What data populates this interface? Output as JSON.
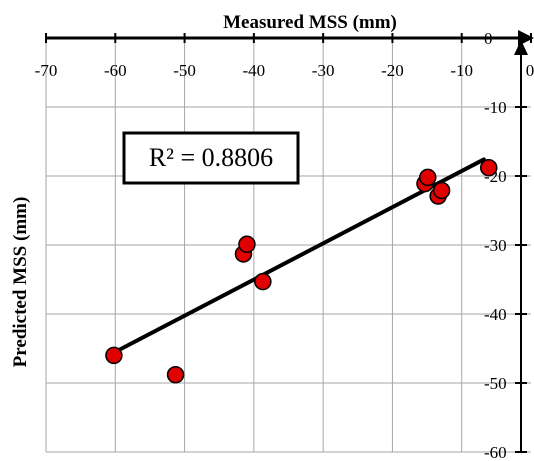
{
  "chart_data": {
    "type": "scatter",
    "xlabel": "Measured MSS (mm)",
    "ylabel": "Predicted  MSS (mm)",
    "xlim": [
      -70,
      0
    ],
    "ylim": [
      -60,
      0
    ],
    "x_ticks": [
      -70,
      -60,
      -50,
      -40,
      -30,
      -20,
      -10,
      0
    ],
    "y_ticks": [
      -60,
      -50,
      -40,
      -30,
      -20,
      -10,
      0
    ],
    "x_axis_position": "top",
    "y_axis_position": "right",
    "grid": true,
    "points": [
      {
        "x": -60.2,
        "y": -46
      },
      {
        "x": -51.3,
        "y": -48.8
      },
      {
        "x": -41.5,
        "y": -31.3
      },
      {
        "x": -41,
        "y": -29.9
      },
      {
        "x": -38.7,
        "y": -35.3
      },
      {
        "x": -15.3,
        "y": -21.1
      },
      {
        "x": -14.9,
        "y": -20.2
      },
      {
        "x": -13.4,
        "y": -22.9
      },
      {
        "x": -12.9,
        "y": -22.1
      },
      {
        "x": -6.1,
        "y": -18.8
      }
    ],
    "trendline": {
      "x": [
        -60.2,
        -6.8
      ],
      "y": [
        -45.6,
        -17.6
      ]
    },
    "annotation": "R² = 0.8806",
    "marker_color": "#e00000",
    "line_color": "#000000"
  }
}
